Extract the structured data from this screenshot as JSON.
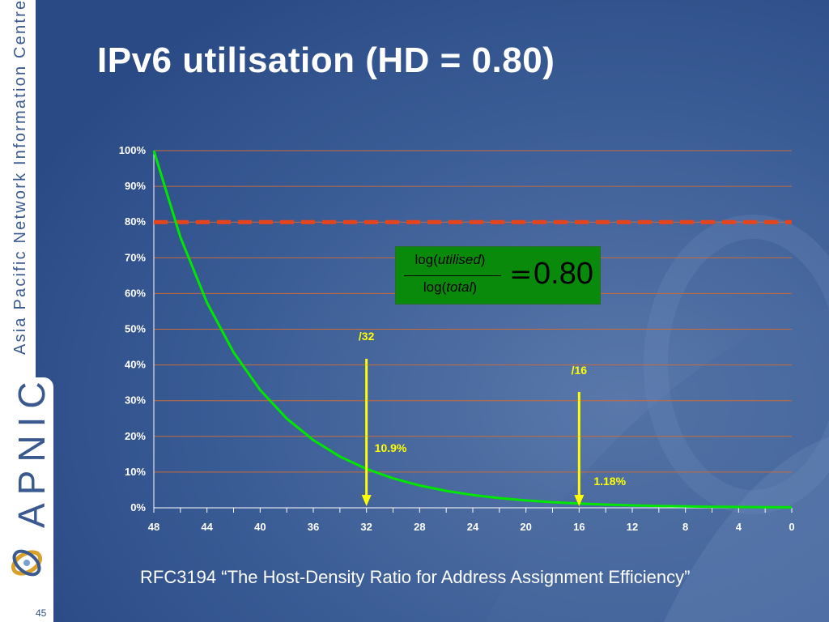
{
  "slide": {
    "title": "IPv6 utilisation (HD = 0.80)",
    "caption": "RFC3194 “The Host-Density Ratio for Address Assignment Efficiency”",
    "page_number": "45",
    "sidebar": {
      "org_name": "Asia Pacific Network Information Centre",
      "brand": "APNIC",
      "logo_icon": "apnic-swirl-icon"
    }
  },
  "formula": {
    "numerator_prefix": "log(",
    "numerator_var": "utilised",
    "numerator_suffix": ")",
    "denominator_prefix": "log(",
    "denominator_var": "total",
    "denominator_suffix": ")",
    "equals": "=",
    "value": "0.80"
  },
  "colors": {
    "background": "#2e4f8a",
    "curve": "#00e600",
    "threshold": "#e8441c",
    "gridline": "#c96a3a",
    "marker": "#ffff00",
    "formula_box": "#0a8a0a"
  },
  "chart_data": {
    "type": "line",
    "title": "",
    "xlabel": "",
    "ylabel": "",
    "x_reversed": true,
    "xlim": [
      48,
      0
    ],
    "ylim": [
      0,
      1
    ],
    "grid": true,
    "x_ticks": [
      "48",
      "44",
      "40",
      "36",
      "32",
      "28",
      "24",
      "20",
      "16",
      "12",
      "8",
      "4",
      "0"
    ],
    "y_ticks": [
      "0%",
      "10%",
      "20%",
      "30%",
      "40%",
      "50%",
      "60%",
      "70%",
      "80%",
      "90%",
      "100%"
    ],
    "series": [
      {
        "points": [
          [
            48,
            1.0
          ],
          [
            46,
            0.7579
          ],
          [
            44,
            0.5743
          ],
          [
            42,
            0.4353
          ],
          [
            40,
            0.3299
          ],
          [
            38,
            0.25
          ],
          [
            36,
            0.1895
          ],
          [
            34,
            0.1436
          ],
          [
            32,
            0.1088
          ],
          [
            30,
            0.0825
          ],
          [
            28,
            0.0625
          ],
          [
            26,
            0.0474
          ],
          [
            24,
            0.0359
          ],
          [
            22,
            0.0272
          ],
          [
            20,
            0.0206
          ],
          [
            18,
            0.0156
          ],
          [
            16,
            0.0118
          ],
          [
            14,
            0.009
          ],
          [
            12,
            0.0068
          ],
          [
            10,
            0.0051
          ],
          [
            8,
            0.0039
          ],
          [
            6,
            0.003
          ],
          [
            4,
            0.0022
          ],
          [
            2,
            0.0017
          ],
          [
            0,
            0.0013
          ]
        ]
      }
    ],
    "threshold": {
      "y": 0.8
    },
    "markers": [
      {
        "x": 32,
        "top_label": "/32",
        "value_label": "10.9%",
        "value": 0.109
      },
      {
        "x": 16,
        "top_label": "/16",
        "value_label": "1.18%",
        "value": 0.0118
      }
    ]
  }
}
